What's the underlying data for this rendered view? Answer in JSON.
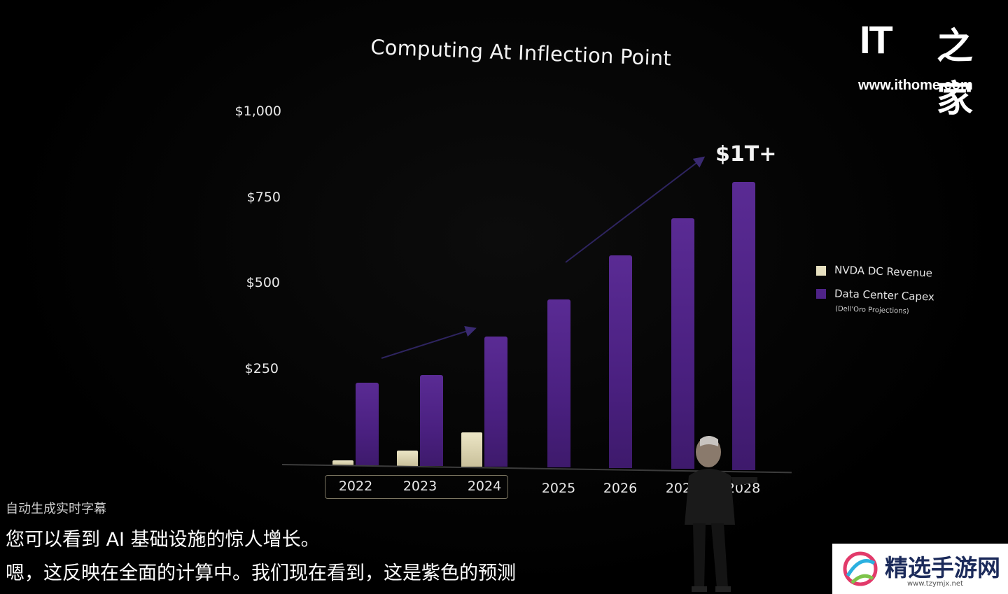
{
  "chart_data": {
    "type": "bar",
    "title": "Computing At Inflection Point",
    "categories": [
      "2022",
      "2023",
      "2024",
      "2025",
      "2026",
      "2027",
      "2028"
    ],
    "series": [
      {
        "name": "NVDA DC Revenue",
        "values": [
          15,
          45,
          100,
          null,
          null,
          null,
          null
        ],
        "color": "#e6dfbf"
      },
      {
        "name": "Data Center Capex",
        "values": [
          240,
          265,
          380,
          490,
          620,
          730,
          840
        ],
        "color": "#4f2388"
      }
    ],
    "legend_note": "(Dell'Oro Projections)",
    "yticks": [
      "$1,000",
      "$750",
      "$500",
      "$250"
    ],
    "ylim": [
      0,
      1000
    ],
    "highlighted_years": [
      "2022",
      "2023",
      "2024"
    ],
    "annotation": "$1T+",
    "legend_position": "right",
    "grid": false
  },
  "watermark": {
    "brand": "IT",
    "brand_zh": "之家",
    "url": "www.ithome.com"
  },
  "captions": {
    "label": "自动生成实时字幕",
    "line1": "您可以看到 AI 基础设施的惊人增长。",
    "line2": "嗯，这反映在全面的计算中。我们现在看到，这是紫色的预测"
  },
  "badge": {
    "name": "精选手游网",
    "url": "www.tzymjx.net"
  }
}
